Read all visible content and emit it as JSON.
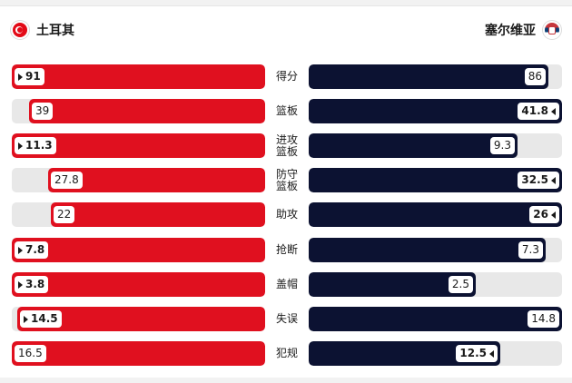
{
  "teams": {
    "home": {
      "name": "土耳其",
      "flag_icon": "turkey-flag-icon",
      "color": "#e0101f"
    },
    "away": {
      "name": "塞尔维亚",
      "flag_icon": "serbia-flag-icon",
      "color": "#0c1232"
    }
  },
  "stats": [
    {
      "label": "得分",
      "home": "91",
      "away": "86",
      "home_fill": 1.0,
      "away_fill": 0.945,
      "leader": "home"
    },
    {
      "label": "篮板",
      "home": "39",
      "away": "41.8",
      "home_fill": 0.933,
      "away_fill": 1.0,
      "leader": "away"
    },
    {
      "label": "进攻\n篮板",
      "home": "11.3",
      "away": "9.3",
      "home_fill": 1.0,
      "away_fill": 0.823,
      "leader": "home"
    },
    {
      "label": "防守\n篮板",
      "home": "27.8",
      "away": "32.5",
      "home_fill": 0.855,
      "away_fill": 1.0,
      "leader": "away"
    },
    {
      "label": "助攻",
      "home": "22",
      "away": "26",
      "home_fill": 0.846,
      "away_fill": 1.0,
      "leader": "away"
    },
    {
      "label": "抢断",
      "home": "7.8",
      "away": "7.3",
      "home_fill": 1.0,
      "away_fill": 0.936,
      "leader": "home"
    },
    {
      "label": "盖帽",
      "home": "3.8",
      "away": "2.5",
      "home_fill": 1.0,
      "away_fill": 0.658,
      "leader": "home"
    },
    {
      "label": "失误",
      "home": "14.5",
      "away": "14.8",
      "home_fill": 0.98,
      "away_fill": 1.0,
      "leader": "home"
    },
    {
      "label": "犯规",
      "home": "16.5",
      "away": "12.5",
      "home_fill": 1.0,
      "away_fill": 0.758,
      "leader": "away"
    }
  ]
}
